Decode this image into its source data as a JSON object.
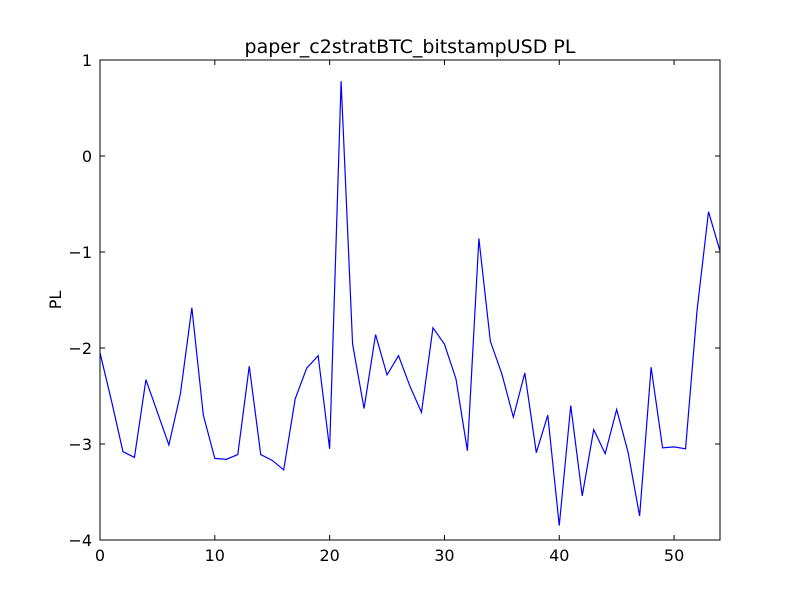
{
  "chart_data": {
    "type": "line",
    "title": "paper_c2stratBTC_bitstampUSD PL",
    "xlabel": "",
    "ylabel": "PL",
    "xlim": [
      0,
      54
    ],
    "ylim": [
      -4,
      1
    ],
    "xticks": [
      0,
      10,
      20,
      30,
      40,
      50
    ],
    "xtick_labels": [
      "0",
      "10",
      "20",
      "30",
      "40",
      "50"
    ],
    "yticks": [
      -4,
      -3,
      -2,
      -1,
      0,
      1
    ],
    "ytick_labels": [
      "−4",
      "−3",
      "−2",
      "−1",
      "0",
      "1"
    ],
    "grid": false,
    "series": [
      {
        "color": "#0000ff",
        "x": [
          0,
          1,
          2,
          3,
          4,
          5,
          6,
          7,
          8,
          9,
          10,
          11,
          12,
          13,
          14,
          15,
          16,
          17,
          18,
          19,
          20,
          21,
          22,
          23,
          24,
          25,
          26,
          27,
          28,
          29,
          30,
          31,
          32,
          33,
          34,
          35,
          36,
          37,
          38,
          39,
          40,
          41,
          42,
          43,
          44,
          45,
          46,
          47,
          48,
          49,
          50,
          51,
          52,
          53,
          54
        ],
        "y": [
          -2.05,
          -2.55,
          -3.08,
          -3.14,
          -2.33,
          -2.67,
          -3.01,
          -2.48,
          -1.58,
          -2.7,
          -3.15,
          -3.16,
          -3.11,
          -2.19,
          -3.11,
          -3.17,
          -3.27,
          -2.53,
          -2.21,
          -2.08,
          -3.05,
          0.78,
          -1.96,
          -2.63,
          -1.86,
          -2.28,
          -2.08,
          -2.4,
          -2.67,
          -1.79,
          -1.96,
          -2.32,
          -3.07,
          -0.86,
          -1.93,
          -2.27,
          -2.72,
          -2.26,
          -3.09,
          -2.7,
          -3.85,
          -2.6,
          -3.54,
          -2.85,
          -3.1,
          -2.64,
          -3.09,
          -3.75,
          -2.2,
          -3.04,
          -3.03,
          -3.05,
          -1.61,
          -0.58,
          -0.99
        ]
      }
    ]
  }
}
